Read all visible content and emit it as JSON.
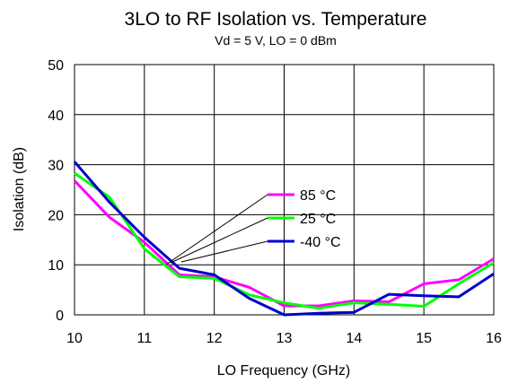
{
  "chart_data": {
    "type": "line",
    "title": "3LO to RF Isolation vs. Temperature",
    "subtitle": "Vd = 5 V,  LO = 0 dBm",
    "xlabel": "LO Frequency (GHz)",
    "ylabel": "Isolation (dB)",
    "xlim": [
      10,
      16
    ],
    "ylim": [
      0,
      50
    ],
    "xticks": [
      "10",
      "11",
      "12",
      "13",
      "14",
      "15",
      "16"
    ],
    "yticks": [
      "0",
      "10",
      "20",
      "30",
      "40",
      "50"
    ],
    "grid": true,
    "legend_position": "center",
    "x": [
      10,
      10.5,
      11,
      11.5,
      12,
      12.5,
      13,
      13.5,
      14,
      14.5,
      15,
      15.5,
      16
    ],
    "series": [
      {
        "name": "85 °C",
        "color": "#ff00ff",
        "values": [
          26.8,
          19.5,
          14.5,
          8.0,
          7.6,
          5.5,
          1.8,
          1.8,
          2.8,
          2.6,
          6.2,
          7.0,
          11.2
        ]
      },
      {
        "name": "25 °C",
        "color": "#00ff00",
        "values": [
          28.3,
          23.5,
          13.2,
          7.6,
          7.3,
          4.0,
          2.4,
          1.3,
          2.4,
          2.1,
          1.7,
          6.2,
          10.4
        ]
      },
      {
        "name": "-40 °C",
        "color": "#0000cc",
        "values": [
          30.6,
          22.5,
          15.5,
          9.3,
          8.0,
          3.3,
          0.0,
          0.3,
          0.5,
          4.1,
          3.8,
          3.6,
          8.2
        ]
      }
    ]
  }
}
